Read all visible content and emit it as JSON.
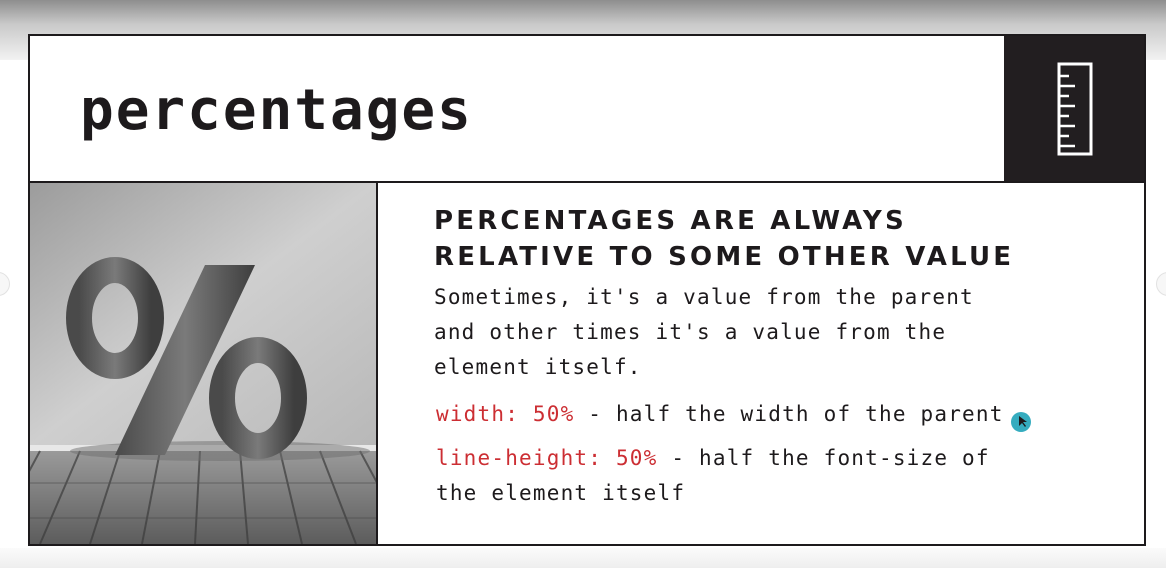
{
  "slide": {
    "title": "percentages",
    "heading": "PERCENTAGES ARE ALWAYS\nRELATIVE TO SOME OTHER VALUE",
    "body": "Sometimes, it's a value from the parent\nand other times it's a value from the\nelement itself.",
    "examples": [
      {
        "code": "width: 50%",
        "text": " - half the width of the parent"
      },
      {
        "code": "line-height: 50%",
        "text": " - half the font-size of\nthe element itself"
      }
    ]
  },
  "icons": {
    "header": "ruler-icon",
    "image": "percent-sign-3d"
  },
  "colors": {
    "ink": "#1d1a1c",
    "code": "#cc2e33",
    "cursor": "#1fa3b8"
  }
}
